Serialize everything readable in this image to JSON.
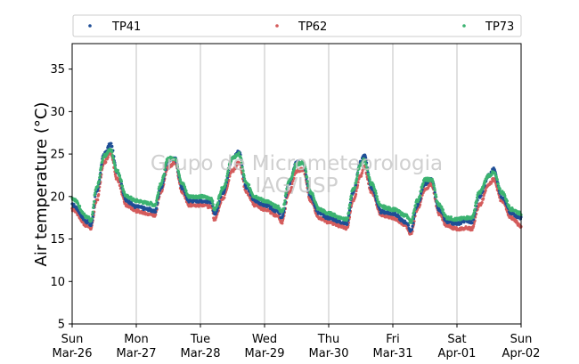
{
  "chart_data": {
    "type": "scatter",
    "ylabel": "Air temperature (°C)",
    "xlabel": "",
    "watermark": [
      "Grupo de Micrometeorologia",
      "IAG/USP"
    ],
    "ylim": [
      5,
      38
    ],
    "yticks": [
      5,
      10,
      15,
      20,
      25,
      30,
      35
    ],
    "xlim_days": [
      0,
      7
    ],
    "xticks": [
      {
        "day": "Sun",
        "date": "Mar-26"
      },
      {
        "day": "Mon",
        "date": "Mar-27"
      },
      {
        "day": "Tue",
        "date": "Mar-28"
      },
      {
        "day": "Wed",
        "date": "Mar-29"
      },
      {
        "day": "Thu",
        "date": "Mar-30"
      },
      {
        "day": "Fri",
        "date": "Mar-31"
      },
      {
        "day": "Sat",
        "date": "Apr-01"
      },
      {
        "day": "Sun",
        "date": "Apr-02"
      }
    ],
    "grid": "x-major",
    "legend_placement": "top",
    "series": [
      {
        "name": "TP41",
        "color": "#1f4e96",
        "anchors": [
          [
            0.0,
            19.0
          ],
          [
            0.25,
            17.0
          ],
          [
            0.29,
            16.6
          ],
          [
            0.38,
            20.5
          ],
          [
            0.5,
            25.0
          ],
          [
            0.6,
            26.2
          ],
          [
            0.7,
            23.0
          ],
          [
            0.85,
            19.5
          ],
          [
            1.0,
            18.8
          ],
          [
            1.2,
            18.5
          ],
          [
            1.29,
            18.2
          ],
          [
            1.38,
            21.0
          ],
          [
            1.5,
            24.3
          ],
          [
            1.6,
            24.5
          ],
          [
            1.72,
            21.0
          ],
          [
            1.82,
            19.5
          ],
          [
            2.0,
            19.5
          ],
          [
            2.17,
            19.4
          ],
          [
            2.22,
            17.8
          ],
          [
            2.35,
            20.5
          ],
          [
            2.5,
            24.5
          ],
          [
            2.6,
            25.3
          ],
          [
            2.72,
            21.0
          ],
          [
            2.85,
            19.5
          ],
          [
            3.0,
            19.0
          ],
          [
            3.2,
            18.3
          ],
          [
            3.27,
            17.5
          ],
          [
            3.38,
            21.5
          ],
          [
            3.5,
            24.0
          ],
          [
            3.6,
            24.0
          ],
          [
            3.72,
            20.0
          ],
          [
            3.85,
            18.0
          ],
          [
            4.0,
            17.5
          ],
          [
            4.2,
            17.0
          ],
          [
            4.28,
            16.8
          ],
          [
            4.38,
            20.5
          ],
          [
            4.5,
            24.0
          ],
          [
            4.55,
            25.0
          ],
          [
            4.67,
            21.0
          ],
          [
            4.82,
            18.2
          ],
          [
            5.0,
            18.0
          ],
          [
            5.2,
            17.0
          ],
          [
            5.28,
            16.0
          ],
          [
            5.38,
            19.0
          ],
          [
            5.5,
            21.5
          ],
          [
            5.6,
            22.0
          ],
          [
            5.72,
            18.5
          ],
          [
            5.85,
            17.0
          ],
          [
            6.0,
            16.8
          ],
          [
            6.15,
            17.2
          ],
          [
            6.23,
            17.0
          ],
          [
            6.35,
            20.0
          ],
          [
            6.5,
            22.5
          ],
          [
            6.57,
            23.2
          ],
          [
            6.7,
            20.0
          ],
          [
            6.85,
            18.0
          ],
          [
            7.0,
            17.5
          ]
        ]
      },
      {
        "name": "TP62",
        "color": "#d45c5c",
        "anchors": [
          [
            0.0,
            18.5
          ],
          [
            0.25,
            16.5
          ],
          [
            0.29,
            16.3
          ],
          [
            0.38,
            19.5
          ],
          [
            0.5,
            24.0
          ],
          [
            0.6,
            25.2
          ],
          [
            0.7,
            22.0
          ],
          [
            0.85,
            19.0
          ],
          [
            1.0,
            18.3
          ],
          [
            1.2,
            18.0
          ],
          [
            1.29,
            17.8
          ],
          [
            1.38,
            20.5
          ],
          [
            1.5,
            23.5
          ],
          [
            1.6,
            24.0
          ],
          [
            1.72,
            20.5
          ],
          [
            1.82,
            19.0
          ],
          [
            2.0,
            19.0
          ],
          [
            2.17,
            18.8
          ],
          [
            2.22,
            17.3
          ],
          [
            2.35,
            19.8
          ],
          [
            2.5,
            23.0
          ],
          [
            2.6,
            24.0
          ],
          [
            2.72,
            20.5
          ],
          [
            2.85,
            19.0
          ],
          [
            3.0,
            18.5
          ],
          [
            3.2,
            17.8
          ],
          [
            3.27,
            17.0
          ],
          [
            3.38,
            20.5
          ],
          [
            3.5,
            23.0
          ],
          [
            3.6,
            23.2
          ],
          [
            3.72,
            19.5
          ],
          [
            3.85,
            17.5
          ],
          [
            4.0,
            17.0
          ],
          [
            4.2,
            16.5
          ],
          [
            4.28,
            16.3
          ],
          [
            4.38,
            19.5
          ],
          [
            4.5,
            22.5
          ],
          [
            4.55,
            23.5
          ],
          [
            4.67,
            20.5
          ],
          [
            4.82,
            17.8
          ],
          [
            5.0,
            17.5
          ],
          [
            5.2,
            16.6
          ],
          [
            5.28,
            15.6
          ],
          [
            5.38,
            18.5
          ],
          [
            5.5,
            20.8
          ],
          [
            5.6,
            21.5
          ],
          [
            5.72,
            18.0
          ],
          [
            5.85,
            16.5
          ],
          [
            6.0,
            16.2
          ],
          [
            6.15,
            16.3
          ],
          [
            6.23,
            16.2
          ],
          [
            6.35,
            19.0
          ],
          [
            6.5,
            21.5
          ],
          [
            6.57,
            22.0
          ],
          [
            6.7,
            19.5
          ],
          [
            6.85,
            17.5
          ],
          [
            7.0,
            16.5
          ]
        ]
      },
      {
        "name": "TP73",
        "color": "#3cb371",
        "anchors": [
          [
            0.0,
            19.8
          ],
          [
            0.25,
            17.5
          ],
          [
            0.29,
            17.0
          ],
          [
            0.38,
            21.0
          ],
          [
            0.5,
            24.8
          ],
          [
            0.6,
            25.5
          ],
          [
            0.7,
            23.0
          ],
          [
            0.85,
            20.0
          ],
          [
            1.0,
            19.5
          ],
          [
            1.2,
            19.2
          ],
          [
            1.29,
            19.0
          ],
          [
            1.38,
            21.5
          ],
          [
            1.5,
            24.5
          ],
          [
            1.6,
            24.5
          ],
          [
            1.72,
            21.5
          ],
          [
            1.82,
            20.0
          ],
          [
            2.0,
            20.0
          ],
          [
            2.17,
            19.8
          ],
          [
            2.22,
            18.5
          ],
          [
            2.35,
            21.0
          ],
          [
            2.5,
            24.5
          ],
          [
            2.6,
            25.0
          ],
          [
            2.72,
            21.5
          ],
          [
            2.85,
            20.0
          ],
          [
            3.0,
            19.5
          ],
          [
            3.2,
            18.8
          ],
          [
            3.27,
            18.2
          ],
          [
            3.38,
            21.8
          ],
          [
            3.5,
            23.8
          ],
          [
            3.6,
            24.0
          ],
          [
            3.72,
            20.5
          ],
          [
            3.85,
            18.5
          ],
          [
            4.0,
            18.0
          ],
          [
            4.2,
            17.5
          ],
          [
            4.28,
            17.3
          ],
          [
            4.38,
            20.8
          ],
          [
            4.5,
            23.8
          ],
          [
            4.55,
            24.3
          ],
          [
            4.67,
            21.5
          ],
          [
            4.82,
            18.8
          ],
          [
            5.0,
            18.5
          ],
          [
            5.2,
            17.8
          ],
          [
            5.28,
            17.0
          ],
          [
            5.38,
            19.5
          ],
          [
            5.5,
            22.0
          ],
          [
            5.6,
            22.0
          ],
          [
            5.72,
            19.0
          ],
          [
            5.85,
            17.5
          ],
          [
            6.0,
            17.3
          ],
          [
            6.15,
            17.5
          ],
          [
            6.23,
            17.5
          ],
          [
            6.35,
            20.5
          ],
          [
            6.5,
            22.5
          ],
          [
            6.57,
            22.8
          ],
          [
            6.7,
            20.5
          ],
          [
            6.85,
            18.5
          ],
          [
            7.0,
            18.0
          ]
        ]
      }
    ]
  }
}
